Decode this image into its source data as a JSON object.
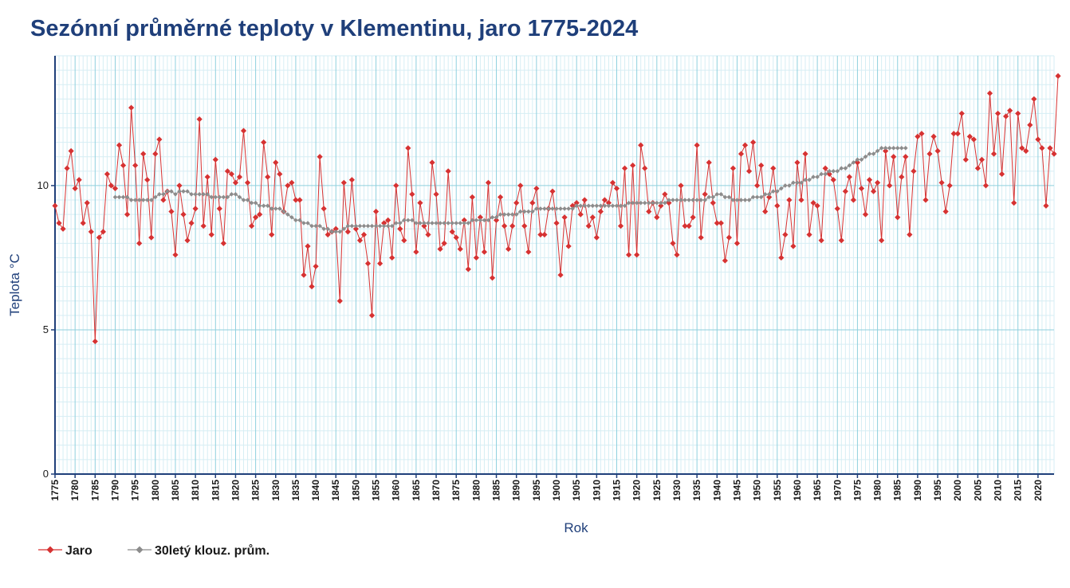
{
  "chart_data": {
    "type": "line",
    "title": "Sezónní průměrné teploty v Klementinu, jaro 1775-2024",
    "xlabel": "Rok",
    "ylabel": "Teplota  °C",
    "xlim": [
      1775,
      2024
    ],
    "ylim": [
      0,
      14.5
    ],
    "yticks": [
      0,
      5,
      10
    ],
    "xticks": [
      1775,
      1780,
      1785,
      1790,
      1795,
      1800,
      1805,
      1810,
      1815,
      1820,
      1825,
      1830,
      1835,
      1840,
      1845,
      1850,
      1855,
      1860,
      1865,
      1870,
      1875,
      1880,
      1885,
      1890,
      1895,
      1900,
      1905,
      1910,
      1915,
      1920,
      1925,
      1930,
      1935,
      1940,
      1945,
      1950,
      1955,
      1960,
      1965,
      1970,
      1975,
      1980,
      1985,
      1990,
      1995,
      2000,
      2005,
      2010,
      2015,
      2020
    ],
    "grid": true,
    "legend_position": "bottom-left",
    "colors": {
      "jaro": "#d63232",
      "mean": "#8c8c8c",
      "grid_major": "#8fd0de",
      "grid_minor": "#d6eef4",
      "axis": "#1f3f7a"
    },
    "series": [
      {
        "name": "Jaro",
        "start_year": 1775,
        "values": [
          9.3,
          8.7,
          8.5,
          10.6,
          11.2,
          9.9,
          10.2,
          8.7,
          9.4,
          8.4,
          4.6,
          8.2,
          8.4,
          10.4,
          10.0,
          9.9,
          11.4,
          10.7,
          9.0,
          12.7,
          10.7,
          8.0,
          11.1,
          10.2,
          8.2,
          11.1,
          11.6,
          9.5,
          9.8,
          9.1,
          7.6,
          10.0,
          9.0,
          8.1,
          8.7,
          9.2,
          12.3,
          8.6,
          10.3,
          8.3,
          10.9,
          9.2,
          8.0,
          10.5,
          10.4,
          10.1,
          10.3,
          11.9,
          10.1,
          8.6,
          8.9,
          9.0,
          11.5,
          10.3,
          8.3,
          10.8,
          10.4,
          9.1,
          10.0,
          10.1,
          9.5,
          9.5,
          6.9,
          7.9,
          6.5,
          7.2,
          11.0,
          9.2,
          8.3,
          8.4,
          8.5,
          6.0,
          10.1,
          8.4,
          10.2,
          8.5,
          8.1,
          8.3,
          7.3,
          5.5,
          9.1,
          7.3,
          8.7,
          8.8,
          7.5,
          10.0,
          8.5,
          8.1,
          11.3,
          9.7,
          7.7,
          9.4,
          8.6,
          8.3,
          10.8,
          9.7,
          7.8,
          8.0,
          10.5,
          8.4,
          8.2,
          7.8,
          8.8,
          7.1,
          9.6,
          7.5,
          8.9,
          7.7,
          10.1,
          6.8,
          8.8,
          9.6,
          8.6,
          7.8,
          8.6,
          9.4,
          10.0,
          8.6,
          7.7,
          9.4,
          9.9,
          8.3,
          8.3,
          9.2,
          9.8,
          8.7,
          6.9,
          8.9,
          7.9,
          9.3,
          9.4,
          9.0,
          9.5,
          8.6,
          8.9,
          8.2,
          9.1,
          9.5,
          9.4,
          10.1,
          9.9,
          8.6,
          10.6,
          7.6,
          10.7,
          7.6,
          11.4,
          10.6,
          9.1,
          9.4,
          8.9,
          9.3,
          9.7,
          9.4,
          8.0,
          7.6,
          10.0,
          8.6,
          8.6,
          8.9,
          11.4,
          8.2,
          9.7,
          10.8,
          9.4,
          8.7,
          8.7,
          7.4,
          8.2,
          10.6,
          8.0,
          11.1,
          11.4,
          10.5,
          11.5,
          10.0,
          10.7,
          9.1,
          9.6,
          10.6,
          9.3,
          7.5,
          8.3,
          9.5,
          7.9,
          10.8,
          9.5,
          11.1,
          8.3,
          9.4,
          9.3,
          8.1,
          10.6,
          10.4,
          10.2,
          9.2,
          8.1,
          9.8,
          10.3,
          9.5,
          10.8,
          9.9,
          9.0,
          10.2,
          9.8,
          10.1,
          8.1,
          11.2,
          10.0,
          11.0,
          8.9,
          10.3,
          11.0,
          8.3,
          10.5,
          11.7,
          11.8,
          9.5,
          11.1,
          11.7,
          11.2,
          10.1,
          9.1,
          10.0,
          11.8,
          11.8,
          12.5,
          10.9,
          11.7,
          11.6,
          10.6,
          10.9,
          10.0,
          13.2,
          11.1,
          12.5,
          10.4,
          12.4,
          12.6,
          9.4,
          12.5,
          11.3,
          11.2,
          12.1,
          13.0,
          11.6,
          11.3,
          9.3,
          11.3,
          11.1,
          13.8
        ]
      },
      {
        "name": "30letý klouz. prům.",
        "start_year": 1790,
        "values": [
          9.6,
          9.6,
          9.6,
          9.6,
          9.5,
          9.5,
          9.5,
          9.5,
          9.5,
          9.5,
          9.6,
          9.7,
          9.7,
          9.8,
          9.8,
          9.7,
          9.8,
          9.8,
          9.8,
          9.7,
          9.7,
          9.7,
          9.7,
          9.7,
          9.6,
          9.6,
          9.6,
          9.6,
          9.6,
          9.7,
          9.7,
          9.6,
          9.5,
          9.5,
          9.4,
          9.4,
          9.3,
          9.3,
          9.3,
          9.2,
          9.2,
          9.2,
          9.1,
          9.0,
          8.9,
          8.8,
          8.8,
          8.7,
          8.7,
          8.6,
          8.6,
          8.6,
          8.5,
          8.5,
          8.4,
          8.4,
          8.4,
          8.5,
          8.6,
          8.6,
          8.6,
          8.6,
          8.6,
          8.6,
          8.6,
          8.6,
          8.6,
          8.6,
          8.6,
          8.6,
          8.7,
          8.7,
          8.8,
          8.8,
          8.8,
          8.7,
          8.7,
          8.7,
          8.7,
          8.7,
          8.7,
          8.7,
          8.7,
          8.7,
          8.7,
          8.7,
          8.7,
          8.7,
          8.7,
          8.8,
          8.8,
          8.8,
          8.8,
          8.8,
          8.9,
          8.9,
          9.0,
          9.0,
          9.0,
          9.0,
          9.0,
          9.1,
          9.1,
          9.1,
          9.1,
          9.2,
          9.2,
          9.2,
          9.2,
          9.2,
          9.2,
          9.2,
          9.2,
          9.2,
          9.2,
          9.3,
          9.3,
          9.3,
          9.3,
          9.3,
          9.3,
          9.3,
          9.3,
          9.3,
          9.3,
          9.3,
          9.3,
          9.3,
          9.4,
          9.4,
          9.4,
          9.4,
          9.4,
          9.4,
          9.4,
          9.4,
          9.4,
          9.4,
          9.5,
          9.5,
          9.5,
          9.5,
          9.5,
          9.5,
          9.5,
          9.5,
          9.5,
          9.5,
          9.6,
          9.6,
          9.7,
          9.7,
          9.6,
          9.6,
          9.5,
          9.5,
          9.5,
          9.5,
          9.5,
          9.6,
          9.6,
          9.6,
          9.7,
          9.7,
          9.8,
          9.8,
          9.9,
          10.0,
          10.0,
          10.1,
          10.1,
          10.1,
          10.2,
          10.2,
          10.3,
          10.3,
          10.4,
          10.4,
          10.5,
          10.5,
          10.5,
          10.6,
          10.6,
          10.7,
          10.8,
          10.9,
          10.9,
          11.0,
          11.1,
          11.1,
          11.2,
          11.3,
          11.3,
          11.3,
          11.3,
          11.3,
          11.3,
          11.3
        ]
      }
    ]
  }
}
